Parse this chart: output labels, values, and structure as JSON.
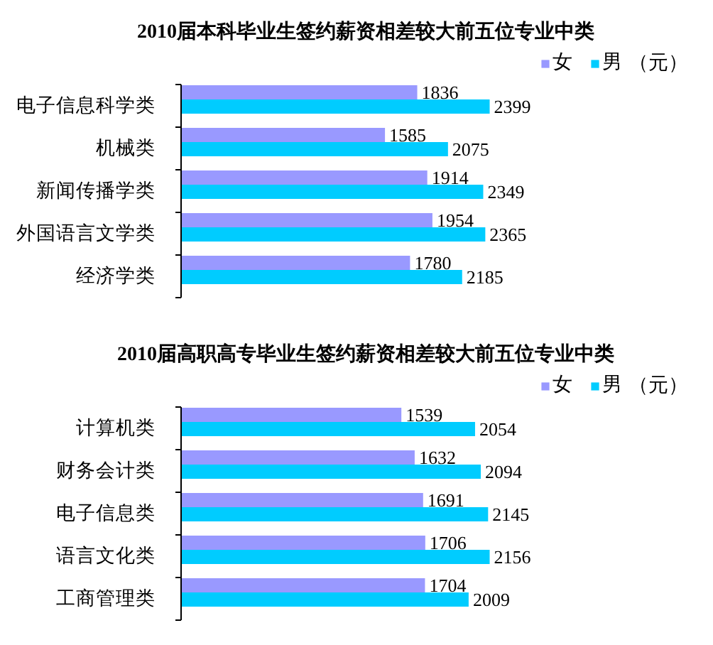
{
  "chart_data": [
    {
      "type": "bar",
      "orientation": "horizontal",
      "title": "2010届本科毕业生签约薪资相差较大前五位专业中类",
      "categories": [
        "电子信息科学类",
        "机械类",
        "新闻传播学类",
        "外国语言文学类",
        "经济学类"
      ],
      "series": [
        {
          "name": "女",
          "color": "#9999ff",
          "values": [
            1836,
            1585,
            1914,
            1954,
            1780
          ]
        },
        {
          "name": "男",
          "color": "#00ccff",
          "values": [
            2399,
            2075,
            2349,
            2365,
            2185
          ]
        }
      ],
      "data_labels": true,
      "legend": "top right",
      "tick_labels": "y",
      "annotations": [
        "（元）"
      ]
    },
    {
      "type": "bar",
      "orientation": "horizontal",
      "title": "2010届高职高专毕业生签约薪资相差较大前五位专业中类",
      "categories": [
        "计算机类",
        "财务会计类",
        "电子信息类",
        "语言文化类",
        "工商管理类"
      ],
      "series": [
        {
          "name": "女",
          "color": "#9999ff",
          "values": [
            1539,
            1632,
            1691,
            1706,
            1704
          ]
        },
        {
          "name": "男",
          "color": "#00ccff",
          "values": [
            2054,
            2094,
            2145,
            2156,
            2009
          ]
        }
      ],
      "data_labels": true,
      "legend": "top right",
      "tick_labels": "y",
      "annotations": [
        "（元）"
      ]
    }
  ]
}
